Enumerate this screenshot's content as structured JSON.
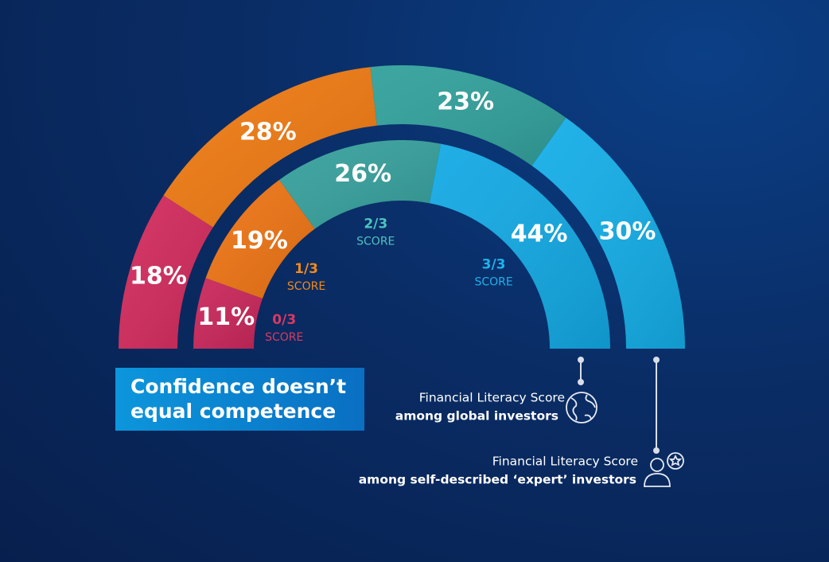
{
  "chart_data": {
    "type": "semi-donut",
    "title": "Confidence doesn’t equal competence",
    "categories": [
      "0/3",
      "1/3",
      "2/3",
      "3/3"
    ],
    "category_sublabel": "SCORE",
    "category_colors": [
      "#d93a62",
      "#f08a1c",
      "#4ec3bf",
      "#1fb2ea"
    ],
    "legend_title": "Financial Literacy Score",
    "series": [
      {
        "name": "among global investors",
        "ring": "inner",
        "colors": [
          "#c9265a",
          "#ee7414",
          "#36a09c",
          "#12a9e4"
        ],
        "values": [
          11,
          19,
          26,
          44
        ],
        "value_labels": [
          "11%",
          "19%",
          "26%",
          "44%"
        ]
      },
      {
        "name": "among self-described ‘expert’ investors",
        "ring": "outer",
        "colors": [
          "#d22a5c",
          "#ef7a12",
          "#31a09b",
          "#14aee8"
        ],
        "values": [
          18,
          28,
          23,
          30
        ],
        "value_labels": [
          "18%",
          "28%",
          "23%",
          "30%"
        ]
      }
    ]
  }
}
